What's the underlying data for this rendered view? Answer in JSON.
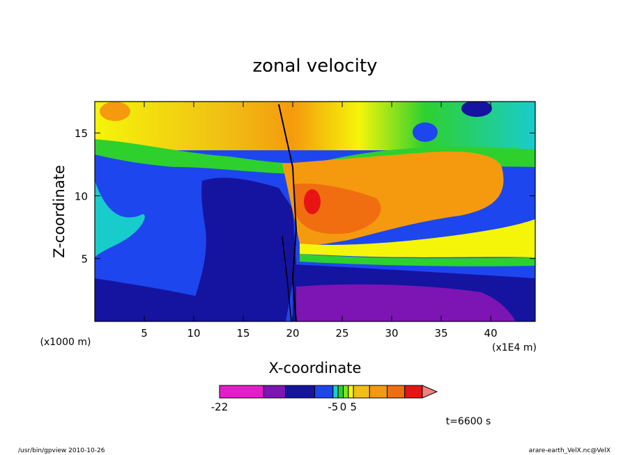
{
  "chart_data": {
    "type": "heatmap",
    "title": "zonal velocity",
    "xlabel": "X-coordinate",
    "ylabel": "Z-coordinate",
    "x_unit": "(x1E4 m)",
    "y_unit": "(x1000 m)",
    "xlim": [
      0,
      44.5
    ],
    "ylim": [
      0,
      17.5
    ],
    "x_ticks": [
      5,
      10,
      15,
      20,
      25,
      30,
      35,
      40
    ],
    "y_ticks": [
      5,
      10,
      15
    ],
    "colorbar": {
      "colors": [
        "#e61ccc",
        "#7d14b4",
        "#1414a0",
        "#1e46ee",
        "#19cccc",
        "#2ed02e",
        "#7ae61e",
        "#f5f50a",
        "#f0be14",
        "#f59a0e",
        "#f06e10",
        "#e81414",
        "#f58080"
      ],
      "weights": [
        3,
        1.5,
        2,
        1.25,
        0.35,
        0.35,
        0.35,
        0.35,
        1.1,
        1.2,
        1.2,
        1.2,
        1
      ],
      "labels": [
        {
          "text": "-22",
          "boundary": 0
        },
        {
          "text": "-5",
          "boundary": 4
        },
        {
          "text": "0",
          "boundary": 6
        },
        {
          "text": "5",
          "boundary": 8
        }
      ]
    },
    "time_label": "t=6600 s",
    "footer_left": "/usr/bin/gpview   2010-10-26",
    "footer_right": "arare-earth_VelX.nc@VelX"
  }
}
